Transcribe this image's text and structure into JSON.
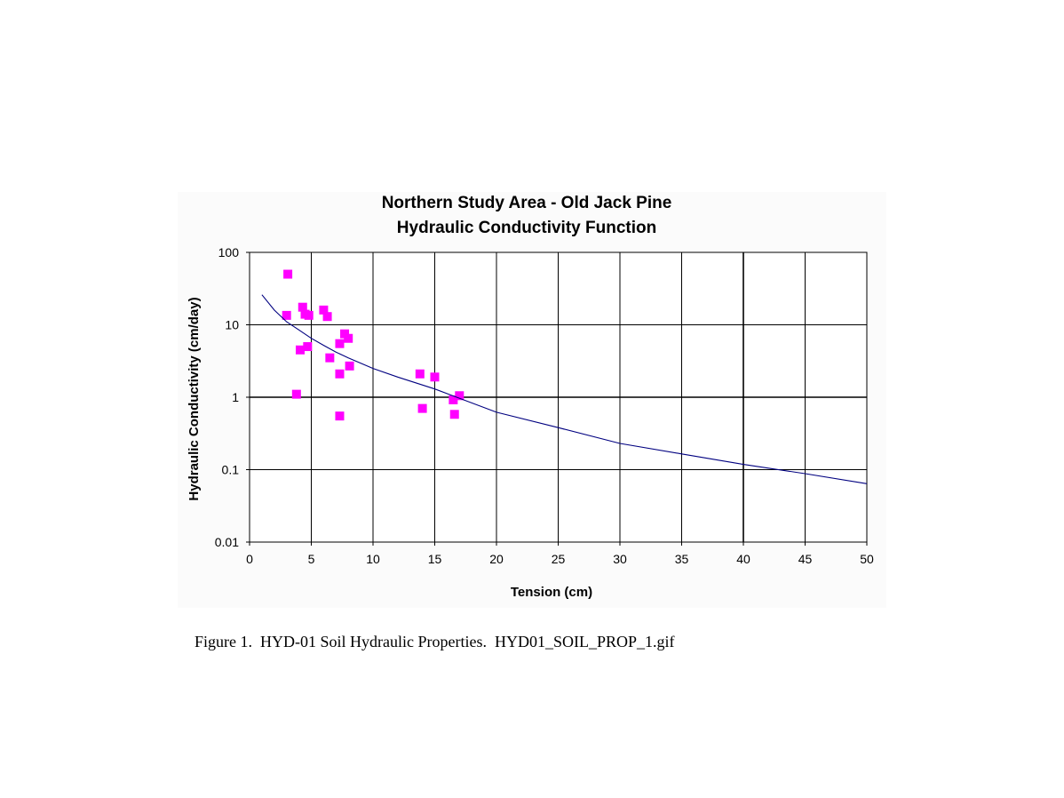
{
  "chart_data": {
    "type": "scatter",
    "title": "Northern Study Area - Old Jack Pine",
    "subtitle": "Hydraulic Conductivity Function",
    "xlabel": "Tension (cm)",
    "ylabel": "Hydraulic Conductivity (cm/day)",
    "xlim": [
      0,
      50
    ],
    "ylim": [
      0.01,
      100
    ],
    "y_scale": "log",
    "grid": true,
    "x_ticks": [
      "0",
      "5",
      "10",
      "15",
      "20",
      "25",
      "30",
      "35",
      "40",
      "45",
      "50"
    ],
    "y_ticks": [
      "0.01",
      "0.1",
      "1",
      "10",
      "100"
    ],
    "series": [
      {
        "kind": "points",
        "color": "#ff00ff",
        "points": [
          [
            3.1,
            50
          ],
          [
            3.0,
            13.5
          ],
          [
            4.3,
            17.5
          ],
          [
            4.5,
            14.0
          ],
          [
            4.8,
            13.5
          ],
          [
            6.0,
            16.0
          ],
          [
            6.3,
            13.0
          ],
          [
            4.1,
            4.5
          ],
          [
            4.7,
            5.0
          ],
          [
            3.8,
            1.1
          ],
          [
            6.5,
            3.5
          ],
          [
            7.3,
            5.5
          ],
          [
            7.7,
            7.5
          ],
          [
            8.0,
            6.5
          ],
          [
            7.3,
            2.1
          ],
          [
            8.1,
            2.7
          ],
          [
            7.3,
            0.55
          ],
          [
            13.8,
            2.1
          ],
          [
            15.0,
            1.9
          ],
          [
            14.0,
            0.7
          ],
          [
            16.5,
            0.92
          ],
          [
            17.0,
            1.05
          ],
          [
            16.6,
            0.58
          ]
        ]
      },
      {
        "kind": "line",
        "color": "#000080",
        "points": [
          [
            1,
            26
          ],
          [
            2,
            16
          ],
          [
            3,
            11
          ],
          [
            4,
            8.5
          ],
          [
            5,
            6.5
          ],
          [
            6,
            5.2
          ],
          [
            7,
            4.2
          ],
          [
            8,
            3.5
          ],
          [
            10,
            2.5
          ],
          [
            12,
            1.9
          ],
          [
            15,
            1.3
          ],
          [
            20,
            0.62
          ],
          [
            25,
            0.38
          ],
          [
            30,
            0.23
          ],
          [
            35,
            0.165
          ],
          [
            40,
            0.118
          ],
          [
            45,
            0.088
          ],
          [
            50,
            0.064
          ]
        ]
      }
    ]
  },
  "caption": "Figure 1.  HYD-01 Soil Hydraulic Properties.  HYD01_SOIL_PROP_1.gif"
}
